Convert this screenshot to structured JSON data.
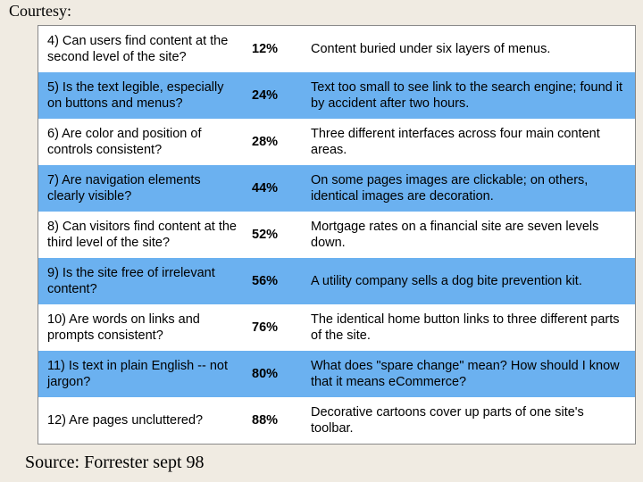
{
  "header": {
    "courtesy_label": "Courtesy:"
  },
  "table": {
    "row_highlight_color": "#6bb1f0",
    "row_plain_color": "#ffffff",
    "columns": [
      "question",
      "percent",
      "example"
    ],
    "rows": [
      {
        "question": "4) Can users find content at the second level of the site?",
        "percent": "12%",
        "example": "Content buried under six layers of menus.",
        "highlight": false
      },
      {
        "question": "5) Is the text legible, especially on buttons and menus?",
        "percent": "24%",
        "example": "Text too small to see link to the search engine; found it by accident after two hours.",
        "highlight": true
      },
      {
        "question": "6) Are color and position of controls consistent?",
        "percent": "28%",
        "example": "Three different interfaces across four main content areas.",
        "highlight": false
      },
      {
        "question": "7) Are navigation elements clearly visible?",
        "percent": "44%",
        "example": "On some pages images are clickable; on others, identical images are decoration.",
        "highlight": true
      },
      {
        "question": "8) Can visitors find content at the third level of the site?",
        "percent": "52%",
        "example": "Mortgage rates on a financial site are seven levels down.",
        "highlight": false
      },
      {
        "question": "9) Is the site free of irrelevant content?",
        "percent": "56%",
        "example": "A utility company sells a dog bite prevention kit.",
        "highlight": true
      },
      {
        "question": "10) Are words on links and prompts consistent?",
        "percent": "76%",
        "example": "The identical home button links to three different parts of the site.",
        "highlight": false
      },
      {
        "question": "11) Is text in plain English -- not jargon?",
        "percent": "80%",
        "example": "What does \"spare change\" mean?  How should I know that it means eCommerce?",
        "highlight": true
      },
      {
        "question": "12) Are pages uncluttered?",
        "percent": "88%",
        "example": "Decorative cartoons cover up parts of one site's toolbar.",
        "highlight": false
      }
    ]
  },
  "footer": {
    "source_label": "Source: Forrester sept 98"
  }
}
